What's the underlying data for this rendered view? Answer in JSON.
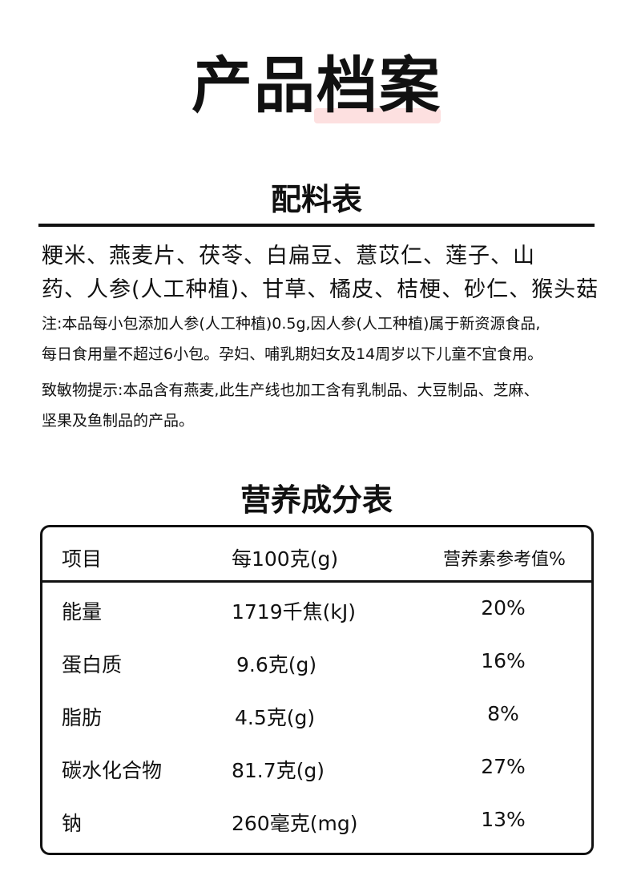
{
  "header": {
    "title": "产品档案",
    "highlight_color": "#fde0e0"
  },
  "ingredients": {
    "heading": "配料表",
    "lines": [
      "粳米、燕麦片、茯苓、白扁豆、薏苡仁、莲子、山",
      "药、人参(人工种植)、甘草、橘皮、桔梗、砂仁、猴头菇"
    ],
    "notes": [
      "注:本品每小包添加人参(人工种植)0.5g,因人参(人工种植)属于新资源食品,",
      "每日食用量不超过6小包。孕妇、哺乳期妇女及14周岁以下儿童不宜食用。",
      "致敏物提示:本品含有燕麦,此生产线也加工含有乳制品、大豆制品、芝麻、",
      "坚果及鱼制品的产品。"
    ]
  },
  "nutrition": {
    "heading": "营养成分表",
    "columns": [
      "项目",
      "每100克(g)",
      "营养素参考值%"
    ],
    "rows": [
      [
        "能量",
        "1719千焦(kJ)",
        "20%"
      ],
      [
        "蛋白质",
        "9.6克(g)",
        "16%"
      ],
      [
        "脂肪",
        "4.5克(g)",
        "8%"
      ],
      [
        "碳水化合物",
        "81.7克(g)",
        "27%"
      ],
      [
        "钠",
        "260毫克(mg)",
        "13%"
      ]
    ]
  }
}
